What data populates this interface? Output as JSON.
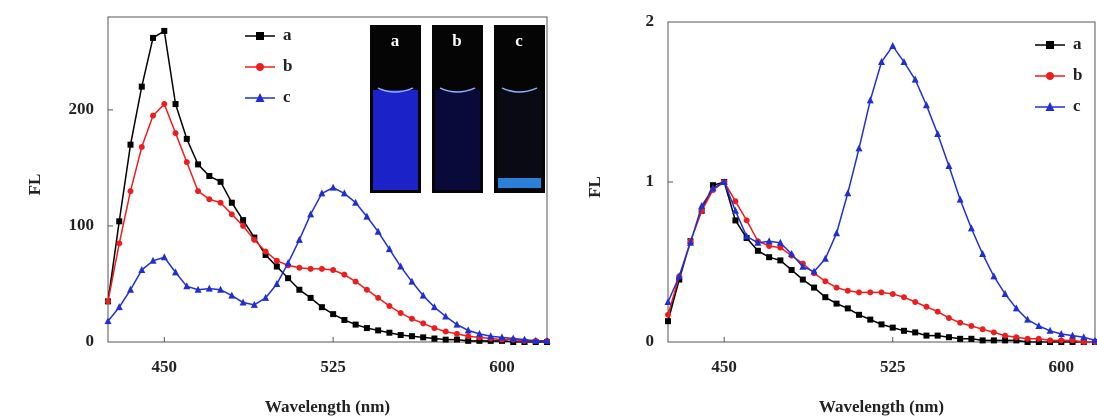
{
  "chart_data": [
    {
      "type": "line",
      "xlabel": "Wavelength (nm)",
      "ylabel": "FL",
      "x": [
        425,
        430,
        435,
        440,
        445,
        450,
        455,
        460,
        465,
        470,
        475,
        480,
        485,
        490,
        495,
        500,
        505,
        510,
        515,
        520,
        525,
        530,
        535,
        540,
        545,
        550,
        555,
        560,
        565,
        570,
        575,
        580,
        585,
        590,
        595,
        600,
        605,
        610,
        615,
        620
      ],
      "series": [
        {
          "name": "a",
          "color": "#000000",
          "marker": "square",
          "values": [
            35,
            104,
            170,
            220,
            262,
            268,
            205,
            175,
            153,
            143,
            138,
            120,
            105,
            90,
            75,
            65,
            55,
            45,
            38,
            30,
            24,
            19,
            15,
            12,
            10,
            8,
            6,
            5,
            4,
            3,
            2,
            2,
            1,
            1,
            1,
            1,
            0,
            0,
            0,
            0
          ]
        },
        {
          "name": "b",
          "color": "#ee1c1c",
          "marker": "circle",
          "values": [
            35,
            85,
            130,
            168,
            195,
            205,
            180,
            155,
            130,
            123,
            120,
            110,
            100,
            88,
            78,
            70,
            66,
            64,
            63,
            63,
            62,
            58,
            52,
            45,
            38,
            31,
            25,
            20,
            16,
            12,
            9,
            7,
            5,
            4,
            3,
            2,
            2,
            1,
            1,
            1
          ]
        },
        {
          "name": "c",
          "color": "#1f2fd6",
          "marker": "triangle",
          "values": [
            18,
            30,
            45,
            62,
            70,
            73,
            60,
            48,
            45,
            46,
            45,
            40,
            34,
            32,
            38,
            50,
            68,
            88,
            110,
            128,
            133,
            128,
            120,
            108,
            95,
            80,
            65,
            52,
            40,
            30,
            22,
            15,
            10,
            7,
            5,
            4,
            3,
            2,
            1,
            1
          ]
        }
      ],
      "xlim": [
        425,
        620
      ],
      "xticks": [
        450,
        525,
        600
      ],
      "ylim": [
        0,
        280
      ],
      "yticks": [
        0,
        100,
        200
      ],
      "legend": "upper center",
      "inset_labels": [
        "a",
        "b",
        "c"
      ]
    },
    {
      "type": "line",
      "xlabel": "Wavelength (nm)",
      "ylabel": "FL",
      "x": [
        425,
        430,
        435,
        440,
        445,
        450,
        455,
        460,
        465,
        470,
        475,
        480,
        485,
        490,
        495,
        500,
        505,
        510,
        515,
        520,
        525,
        530,
        535,
        540,
        545,
        550,
        555,
        560,
        565,
        570,
        575,
        580,
        585,
        590,
        595,
        600,
        605,
        610,
        615
      ],
      "series": [
        {
          "name": "a",
          "color": "#000000",
          "marker": "square",
          "values": [
            0.13,
            0.39,
            0.63,
            0.82,
            0.98,
            1.0,
            0.76,
            0.65,
            0.57,
            0.53,
            0.51,
            0.45,
            0.39,
            0.34,
            0.28,
            0.24,
            0.21,
            0.17,
            0.14,
            0.11,
            0.09,
            0.07,
            0.06,
            0.04,
            0.04,
            0.03,
            0.02,
            0.02,
            0.01,
            0.01,
            0.01,
            0.01,
            0,
            0,
            0,
            0,
            0,
            0,
            0
          ]
        },
        {
          "name": "b",
          "color": "#ee1c1c",
          "marker": "circle",
          "values": [
            0.17,
            0.41,
            0.63,
            0.82,
            0.95,
            1.0,
            0.88,
            0.76,
            0.63,
            0.6,
            0.59,
            0.54,
            0.49,
            0.43,
            0.38,
            0.34,
            0.32,
            0.31,
            0.31,
            0.31,
            0.3,
            0.28,
            0.25,
            0.22,
            0.19,
            0.15,
            0.12,
            0.1,
            0.08,
            0.06,
            0.04,
            0.03,
            0.02,
            0.02,
            0.01,
            0.01,
            0.01,
            0,
            0
          ]
        },
        {
          "name": "c",
          "color": "#1f2fd6",
          "marker": "triangle",
          "values": [
            0.25,
            0.41,
            0.62,
            0.85,
            0.96,
            1.0,
            0.82,
            0.66,
            0.62,
            0.63,
            0.62,
            0.55,
            0.47,
            0.44,
            0.52,
            0.68,
            0.93,
            1.21,
            1.51,
            1.75,
            1.85,
            1.75,
            1.64,
            1.48,
            1.3,
            1.1,
            0.89,
            0.71,
            0.55,
            0.41,
            0.3,
            0.21,
            0.14,
            0.1,
            0.07,
            0.05,
            0.04,
            0.03,
            0.01
          ]
        }
      ],
      "xlim": [
        425,
        615
      ],
      "xticks": [
        450,
        525,
        600
      ],
      "ylim": [
        0,
        2
      ],
      "yticks": [
        0,
        1,
        2
      ],
      "legend": "upper right"
    }
  ]
}
